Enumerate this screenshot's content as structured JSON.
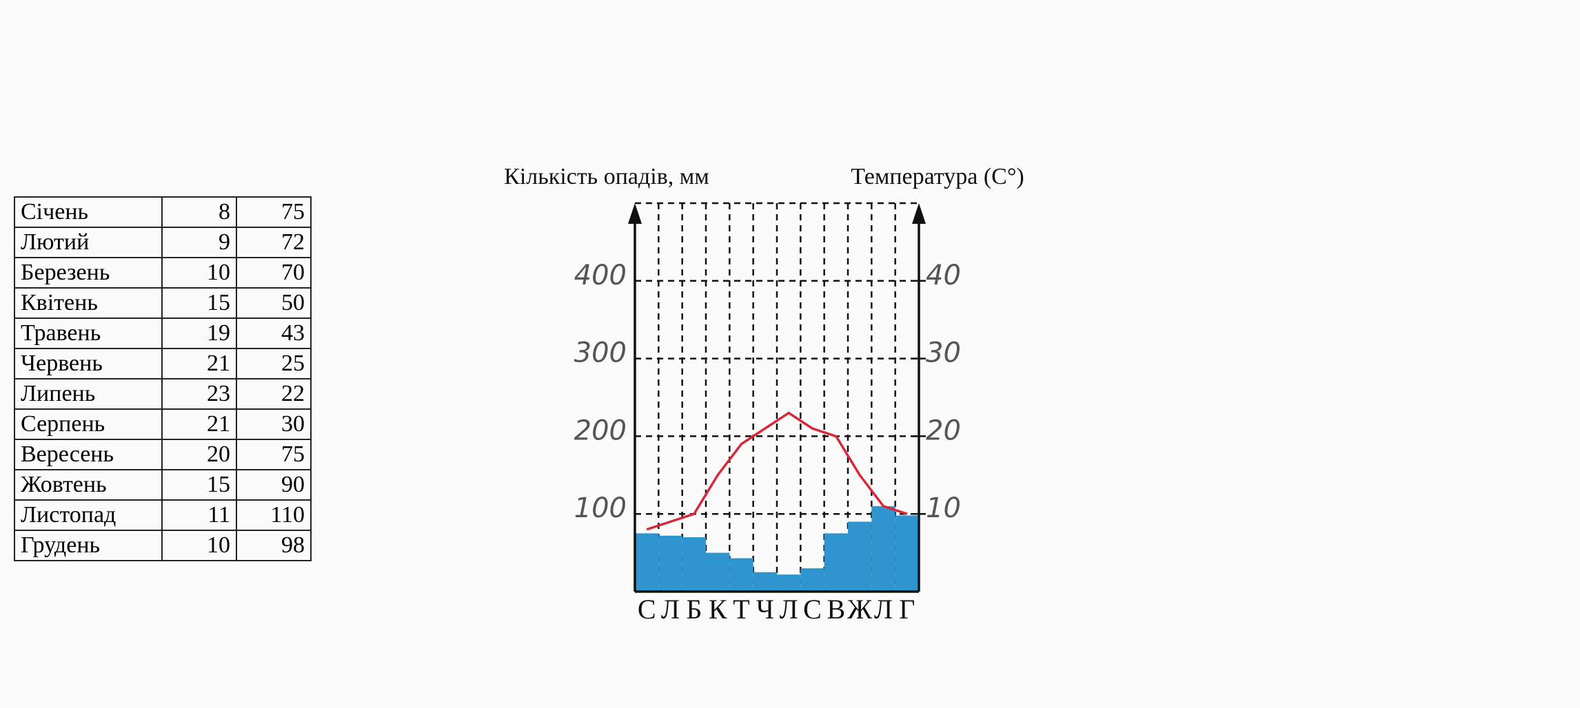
{
  "table": {
    "rows": [
      [
        "Січень",
        8,
        75
      ],
      [
        "Лютий",
        9,
        72
      ],
      [
        "Березень",
        10,
        70
      ],
      [
        "Квітень",
        15,
        50
      ],
      [
        "Травень",
        19,
        43
      ],
      [
        "Червень",
        21,
        25
      ],
      [
        "Липень",
        23,
        22
      ],
      [
        "Серпень",
        21,
        30
      ],
      [
        "Вересень",
        20,
        75
      ],
      [
        "Жовтень",
        15,
        90
      ],
      [
        "Листопад",
        11,
        110
      ],
      [
        "Грудень",
        10,
        98
      ]
    ]
  },
  "chart_data": {
    "type": "bar",
    "y_label": "Кількість опадів, мм",
    "y2_label": "Температура (С°)",
    "categories": [
      "С",
      "Л",
      "Б",
      "К",
      "Т",
      "Ч",
      "Л",
      "С",
      "В",
      "Ж",
      "Л",
      "Г"
    ],
    "series": [
      {
        "type": "bar",
        "color": "#2f95cf",
        "values": [
          75,
          72,
          70,
          50,
          43,
          25,
          22,
          30,
          75,
          90,
          110,
          98
        ]
      },
      {
        "type": "line",
        "color": "#d8283a",
        "axis": "y2",
        "values": [
          8,
          9,
          10,
          15,
          19,
          21,
          23,
          21,
          20,
          15,
          11,
          10
        ]
      }
    ],
    "ylim": [
      0,
      500
    ],
    "yticks": [
      100,
      200,
      300,
      400
    ],
    "y2lim": [
      0,
      50
    ],
    "y2ticks": [
      10,
      20,
      30,
      40
    ],
    "grid": true
  }
}
